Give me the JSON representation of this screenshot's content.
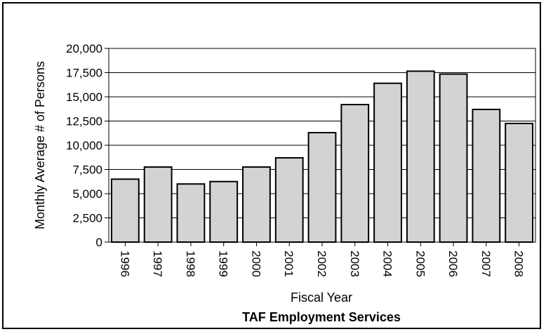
{
  "chart_data": {
    "type": "bar",
    "title": "TAF Employment Services",
    "xlabel": "Fiscal Year",
    "ylabel": "Monthly Average # of Persons",
    "categories": [
      "1996",
      "1997",
      "1998",
      "1999",
      "2000",
      "2001",
      "2002",
      "2003",
      "2004",
      "2005",
      "2006",
      "2007",
      "2008"
    ],
    "values": [
      6500,
      7750,
      6000,
      6250,
      7750,
      8700,
      11300,
      14200,
      16400,
      17650,
      17350,
      13700,
      12250
    ],
    "ylim": [
      0,
      20000
    ],
    "yticks": [
      0,
      2500,
      5000,
      7500,
      10000,
      12500,
      15000,
      17500,
      20000
    ],
    "ytick_labels": [
      "0",
      "2,500",
      "5,000",
      "7,500",
      "10,000",
      "12,500",
      "15,000",
      "17,500",
      "20,000"
    ],
    "grid": true,
    "bar_color": "#d3d3d3",
    "edge_color": "#000000"
  }
}
